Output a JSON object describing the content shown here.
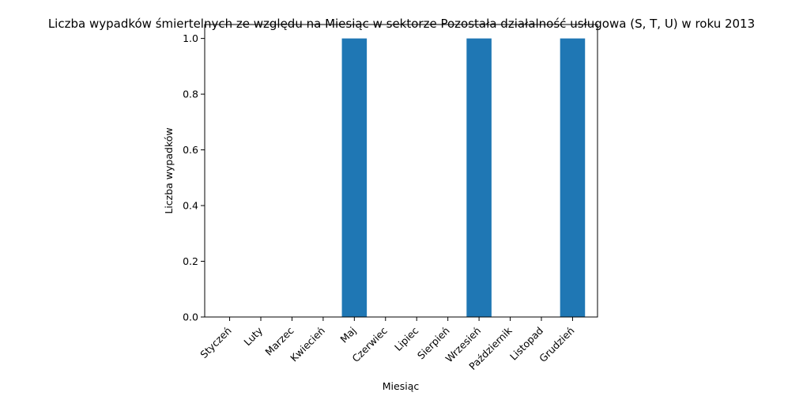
{
  "chart_data": {
    "type": "bar",
    "title": "Liczba wypadków śmiertelnych ze względu na Miesiąc w sektorze Pozostała działalność usługowa (S, T, U) w roku 2013",
    "xlabel": "Miesiąc",
    "ylabel": "Liczba wypadków",
    "categories": [
      "Styczeń",
      "Luty",
      "Marzec",
      "Kwiecień",
      "Maj",
      "Czerwiec",
      "Lipiec",
      "Sierpień",
      "Wrzesień",
      "Październik",
      "Listopad",
      "Grudzień"
    ],
    "values": [
      0,
      0,
      0,
      0,
      1,
      0,
      0,
      0,
      1,
      0,
      0,
      1
    ],
    "ylim": [
      0,
      1.05
    ],
    "yticks": [
      "0.0",
      "0.2",
      "0.4",
      "0.6",
      "0.8",
      "1.0"
    ],
    "bar_color": "#1f77b4",
    "grid": false,
    "legend": false
  }
}
